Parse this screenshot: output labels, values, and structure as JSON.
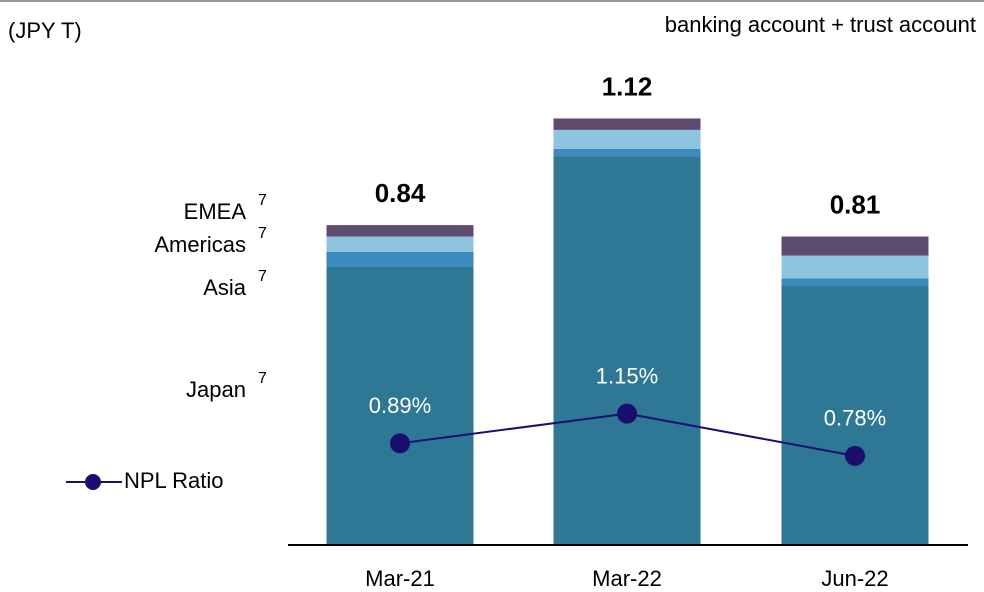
{
  "chart_data": {
    "type": "bar",
    "unit_label": "(JPY T)",
    "subtitle": "banking account + trust account",
    "categories": [
      "Mar-21",
      "Mar-22",
      "Jun-22"
    ],
    "stacked": true,
    "ylim": [
      0,
      1.2
    ],
    "y2lim": [
      0,
      4
    ],
    "totals": [
      0.84,
      1.12,
      0.81
    ],
    "footnote": "7",
    "series": [
      {
        "name": "Japan",
        "color": "#2e7896",
        "values": [
          0.73,
          1.02,
          0.68
        ]
      },
      {
        "name": "Asia",
        "color": "#3a8bbb",
        "values": [
          0.04,
          0.02,
          0.02
        ]
      },
      {
        "name": "Americas",
        "color": "#8dc4e0",
        "values": [
          0.04,
          0.05,
          0.06
        ]
      },
      {
        "name": "EMEA",
        "color": "#5f4b6e",
        "values": [
          0.03,
          0.03,
          0.05
        ]
      },
      {
        "name": "NPL Ratio",
        "type": "line",
        "axis": "y2",
        "color": "#1a0f6e",
        "values": [
          0.89,
          1.15,
          0.78
        ],
        "value_labels": [
          "0.89%",
          "1.15%",
          "0.78%"
        ]
      }
    ]
  }
}
